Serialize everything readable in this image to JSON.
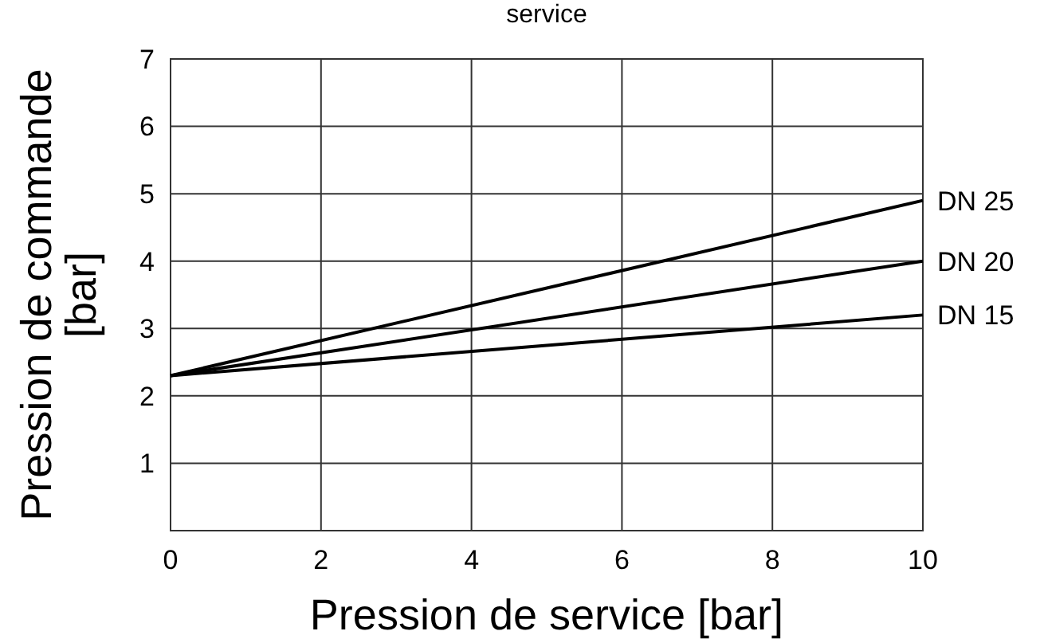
{
  "chart_data": {
    "type": "line",
    "title": "service",
    "xlabel": "Pression de service [bar]",
    "ylabel": "Pression de commande [bar]",
    "x": [
      0,
      10
    ],
    "series": [
      {
        "name": "DN 25",
        "color": "#000000",
        "values": [
          2.3,
          4.9
        ]
      },
      {
        "name": "DN 20",
        "color": "#000000",
        "values": [
          2.3,
          4.0
        ]
      },
      {
        "name": "DN 15",
        "color": "#000000",
        "values": [
          2.3,
          3.2
        ]
      }
    ],
    "xlim": [
      0,
      10
    ],
    "xticks": [
      0,
      2,
      4,
      6,
      8,
      10
    ],
    "ylim": [
      0,
      7
    ],
    "yticks": [
      {
        "value": 0,
        "label": null
      },
      1,
      2,
      3,
      4,
      5,
      6,
      7
    ],
    "grid": true,
    "marker": "none",
    "line_style": "solid"
  }
}
